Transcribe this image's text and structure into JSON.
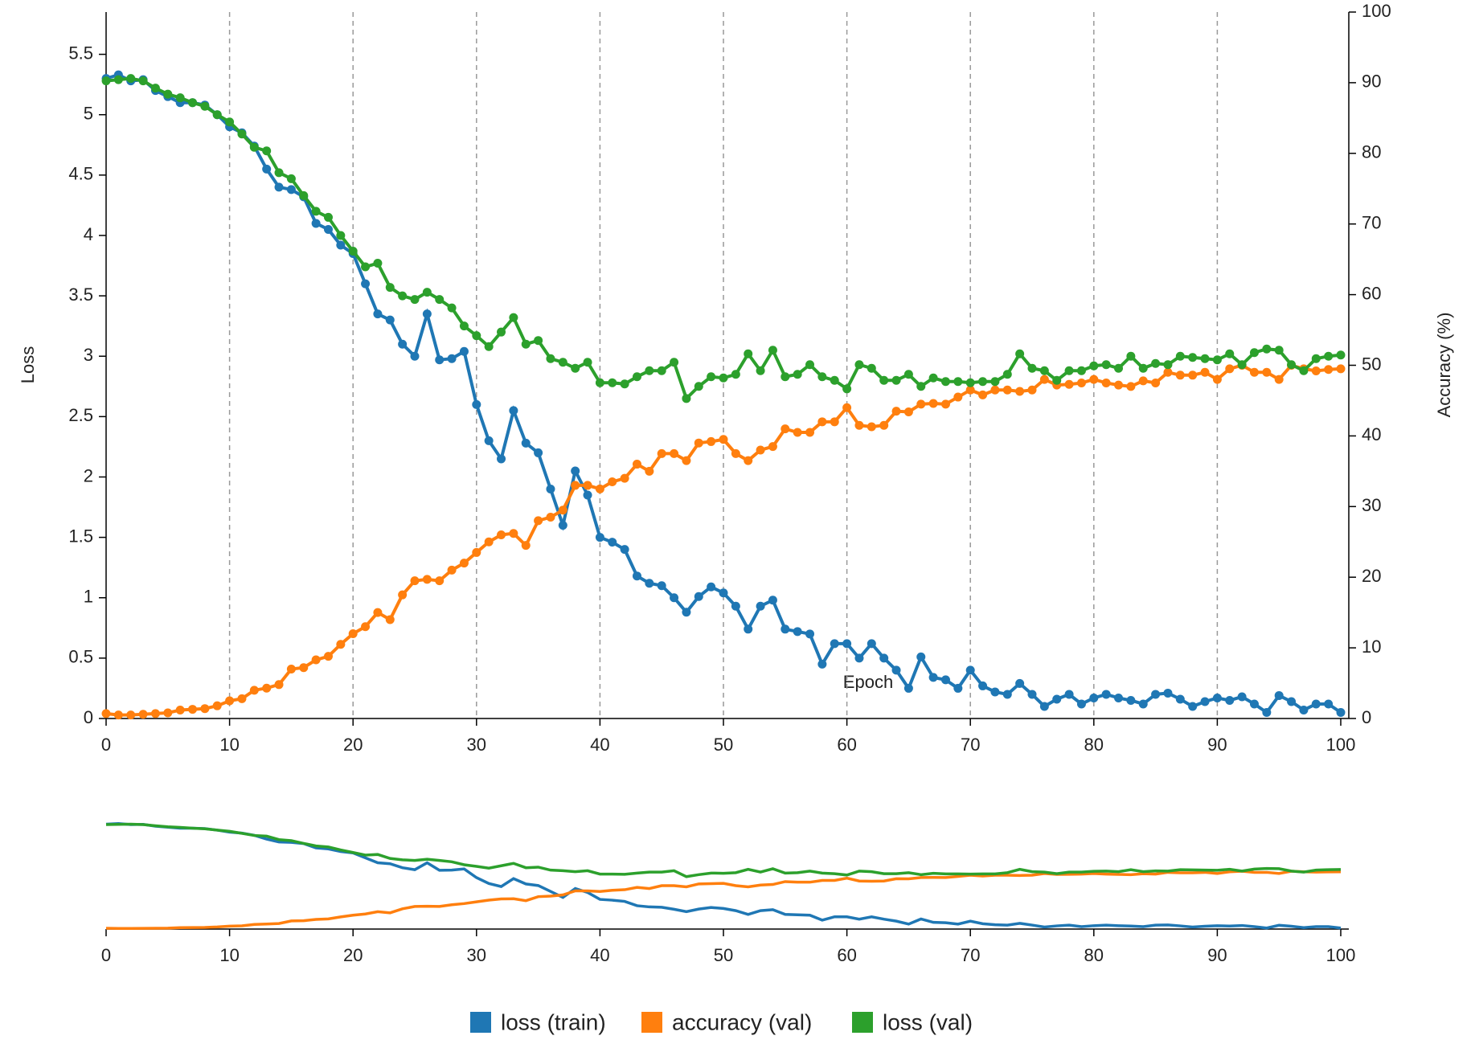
{
  "chart_data": {
    "type": "line",
    "xlabel": "Epoch",
    "ylabel": "Loss",
    "y2label": "Accuracy (%)",
    "x": [
      0,
      1,
      2,
      3,
      4,
      5,
      6,
      7,
      8,
      9,
      10,
      11,
      12,
      13,
      14,
      15,
      16,
      17,
      18,
      19,
      20,
      21,
      22,
      23,
      24,
      25,
      26,
      27,
      28,
      29,
      30,
      31,
      32,
      33,
      34,
      35,
      36,
      37,
      38,
      39,
      40,
      41,
      42,
      43,
      44,
      45,
      46,
      47,
      48,
      49,
      50,
      51,
      52,
      53,
      54,
      55,
      56,
      57,
      58,
      59,
      60,
      61,
      62,
      63,
      64,
      65,
      66,
      67,
      68,
      69,
      70,
      71,
      72,
      73,
      74,
      75,
      76,
      77,
      78,
      79,
      80,
      81,
      82,
      83,
      84,
      85,
      86,
      87,
      88,
      89,
      90,
      91,
      92,
      93,
      94,
      95,
      96,
      97,
      98,
      99,
      100
    ],
    "xlim": [
      0,
      100
    ],
    "xticks": [
      0,
      10,
      20,
      30,
      40,
      50,
      60,
      70,
      80,
      90,
      100
    ],
    "ylim": [
      0,
      5.85
    ],
    "yticks": [
      0,
      0.5,
      1,
      1.5,
      2,
      2.5,
      3,
      3.5,
      4,
      4.5,
      5,
      5.5
    ],
    "y2lim": [
      0,
      100
    ],
    "y2ticks": [
      0,
      10,
      20,
      30,
      40,
      50,
      60,
      70,
      80,
      90,
      100
    ],
    "grid": "x",
    "series": [
      {
        "name": "loss (train)",
        "color": "#1f77b4",
        "axis": "y",
        "values": [
          5.3,
          5.33,
          5.28,
          5.29,
          5.2,
          5.15,
          5.1,
          5.1,
          5.08,
          5.0,
          4.9,
          4.85,
          4.74,
          4.55,
          4.4,
          4.38,
          4.32,
          4.1,
          4.05,
          3.92,
          3.85,
          3.6,
          3.35,
          3.3,
          3.1,
          3.0,
          3.35,
          2.97,
          2.98,
          3.04,
          2.6,
          2.3,
          2.15,
          2.55,
          2.28,
          2.2,
          1.9,
          1.6,
          2.05,
          1.85,
          1.5,
          1.46,
          1.4,
          1.18,
          1.12,
          1.1,
          1.0,
          0.88,
          1.01,
          1.09,
          1.04,
          0.93,
          0.74,
          0.93,
          0.98,
          0.74,
          0.72,
          0.7,
          0.45,
          0.62,
          0.62,
          0.5,
          0.62,
          0.5,
          0.4,
          0.25,
          0.51,
          0.34,
          0.32,
          0.25,
          0.4,
          0.27,
          0.22,
          0.2,
          0.29,
          0.2,
          0.1,
          0.16,
          0.2,
          0.12,
          0.17,
          0.2,
          0.17,
          0.15,
          0.12,
          0.2,
          0.21,
          0.16,
          0.1,
          0.14,
          0.17,
          0.15,
          0.18,
          0.12,
          0.05,
          0.19,
          0.14,
          0.07,
          0.12,
          0.12,
          0.05
        ]
      },
      {
        "name": "accuracy (val)",
        "color": "#ff7f0e",
        "axis": "y2",
        "values": [
          0.7,
          0.5,
          0.5,
          0.6,
          0.7,
          0.8,
          1.2,
          1.3,
          1.4,
          1.8,
          2.5,
          2.8,
          4,
          4.3,
          4.8,
          7,
          7.2,
          8.3,
          8.8,
          10.5,
          12,
          13,
          15,
          14,
          17.5,
          19.5,
          19.7,
          19.5,
          21,
          22,
          23.5,
          25,
          26,
          26.2,
          24.5,
          28,
          28.5,
          29.5,
          33,
          33,
          32.5,
          33.5,
          34,
          36,
          35,
          37.5,
          37.5,
          36.5,
          39,
          39.2,
          39.5,
          37.5,
          36.5,
          38,
          38.5,
          41,
          40.5,
          40.5,
          42,
          42,
          44,
          41.5,
          41.3,
          41.5,
          43.5,
          43.4,
          44.5,
          44.6,
          44.5,
          45.5,
          46.5,
          45.8,
          46.5,
          46.5,
          46.3,
          46.5,
          48,
          47.2,
          47.3,
          47.5,
          48,
          47.5,
          47.2,
          47,
          47.8,
          47.5,
          49,
          48.6,
          48.6,
          49,
          48,
          49.5,
          50,
          49,
          49,
          48,
          50,
          49.5,
          49.2,
          49.4,
          49.5
        ]
      },
      {
        "name": "loss (val)",
        "color": "#2ca02c",
        "axis": "y",
        "values": [
          5.28,
          5.29,
          5.3,
          5.28,
          5.22,
          5.17,
          5.14,
          5.1,
          5.07,
          5.0,
          4.94,
          4.84,
          4.73,
          4.7,
          4.52,
          4.47,
          4.33,
          4.2,
          4.15,
          4.0,
          3.87,
          3.74,
          3.77,
          3.57,
          3.5,
          3.47,
          3.53,
          3.47,
          3.4,
          3.25,
          3.17,
          3.08,
          3.2,
          3.32,
          3.1,
          3.13,
          2.98,
          2.95,
          2.9,
          2.95,
          2.78,
          2.78,
          2.77,
          2.83,
          2.88,
          2.88,
          2.95,
          2.65,
          2.75,
          2.83,
          2.82,
          2.85,
          3.02,
          2.88,
          3.05,
          2.83,
          2.85,
          2.93,
          2.83,
          2.8,
          2.73,
          2.93,
          2.9,
          2.8,
          2.8,
          2.85,
          2.75,
          2.82,
          2.79,
          2.79,
          2.78,
          2.79,
          2.79,
          2.85,
          3.02,
          2.9,
          2.88,
          2.8,
          2.88,
          2.88,
          2.92,
          2.93,
          2.9,
          3.0,
          2.9,
          2.94,
          2.93,
          3.0,
          2.99,
          2.98,
          2.97,
          3.02,
          2.93,
          3.03,
          3.06,
          3.05,
          2.93,
          2.88,
          2.98,
          3.0,
          3.01
        ]
      }
    ]
  }
}
